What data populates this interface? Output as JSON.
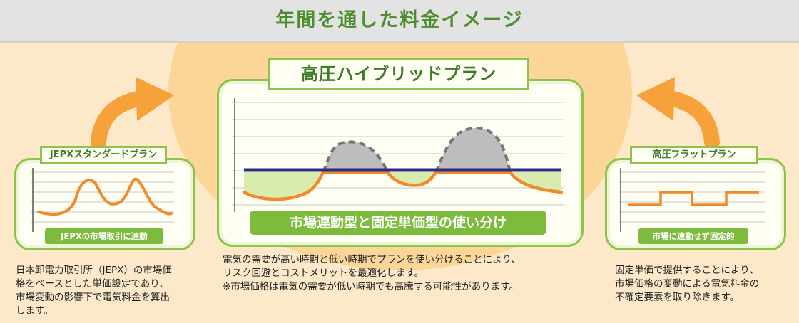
{
  "header": {
    "title": "年間を通した料金イメージ"
  },
  "left_plan": {
    "title": "JEPXスタンダードプラン",
    "tag": "JEPXの市場取引に連動",
    "description": [
      "日本卸電力取引所（JEPX）の市場価",
      "格をベースとした単価設定であり、",
      "市場変動の影響下で電気料金を算出",
      "します。"
    ]
  },
  "center_plan": {
    "title": "高圧ハイブリッドプラン",
    "tag": "市場連動型と固定単価型の使い分け",
    "description": [
      "電気の需要が高い時期と低い時期でプランを使い分けることにより、",
      "リスク回避とコストメリットを最適化します。",
      "※市場価格は電気の需要が低い時期でも高騰する可能性があります。"
    ]
  },
  "right_plan": {
    "title": "高圧フラットプラン",
    "tag": "市場に連動せず固定的",
    "description": [
      "固定単価で提供することにより、",
      "市場価格の変動による電気料金の",
      "不確定要素を取り除きます。"
    ]
  },
  "colors": {
    "market_line": "#f08a2b",
    "fixed_line": "#2b2d84",
    "saving_fill": "#d9ebad",
    "excess_fill": "#bdbdbd",
    "arrow": "#f7a13a",
    "accent_green": "#7dbb3d"
  },
  "icons": {
    "left_arrow": "curved-arrow-right-icon",
    "right_arrow": "curved-arrow-left-icon"
  }
}
